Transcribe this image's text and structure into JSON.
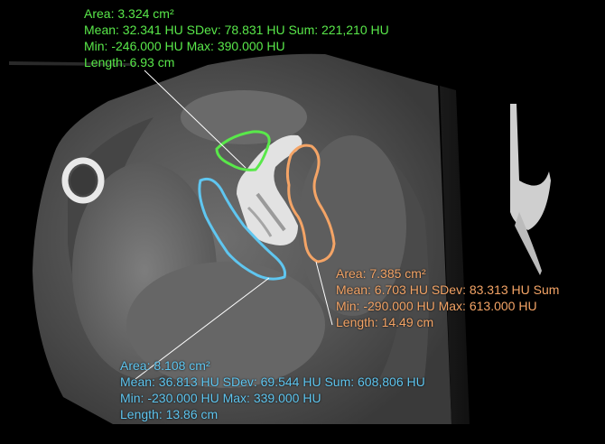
{
  "viewer": {
    "name": "CT slice viewer with ROI measurements"
  },
  "colors": {
    "green_roi": "#59e84a",
    "orange_roi": "#f4a466",
    "blue_roi": "#5fc6f0",
    "background": "#000000"
  },
  "rois": {
    "green": {
      "area": "Area: 3.324 cm²",
      "mean_line": "Mean: 32.341 HU  SDev: 78.831 HU  Sum: 221,210 HU",
      "minmax": "Min: -246.000 HU  Max: 390.000 HU",
      "length": "Length: 6.93 cm"
    },
    "orange": {
      "area": "Area: 7.385 cm²",
      "mean_line": "Mean: 6.703 HU  SDev: 83.313 HU  Sum",
      "minmax": "Min: -290.000 HU  Max: 613.000 HU",
      "length": "Length: 14.49 cm"
    },
    "blue": {
      "area": "Area: 8.108 cm²",
      "mean_line": "Mean: 36.813 HU  SDev: 69.544 HU  Sum: 608,806 HU",
      "minmax": "Min: -230.000 HU  Max: 339.000 HU",
      "length": "Length: 13.86 cm"
    }
  }
}
